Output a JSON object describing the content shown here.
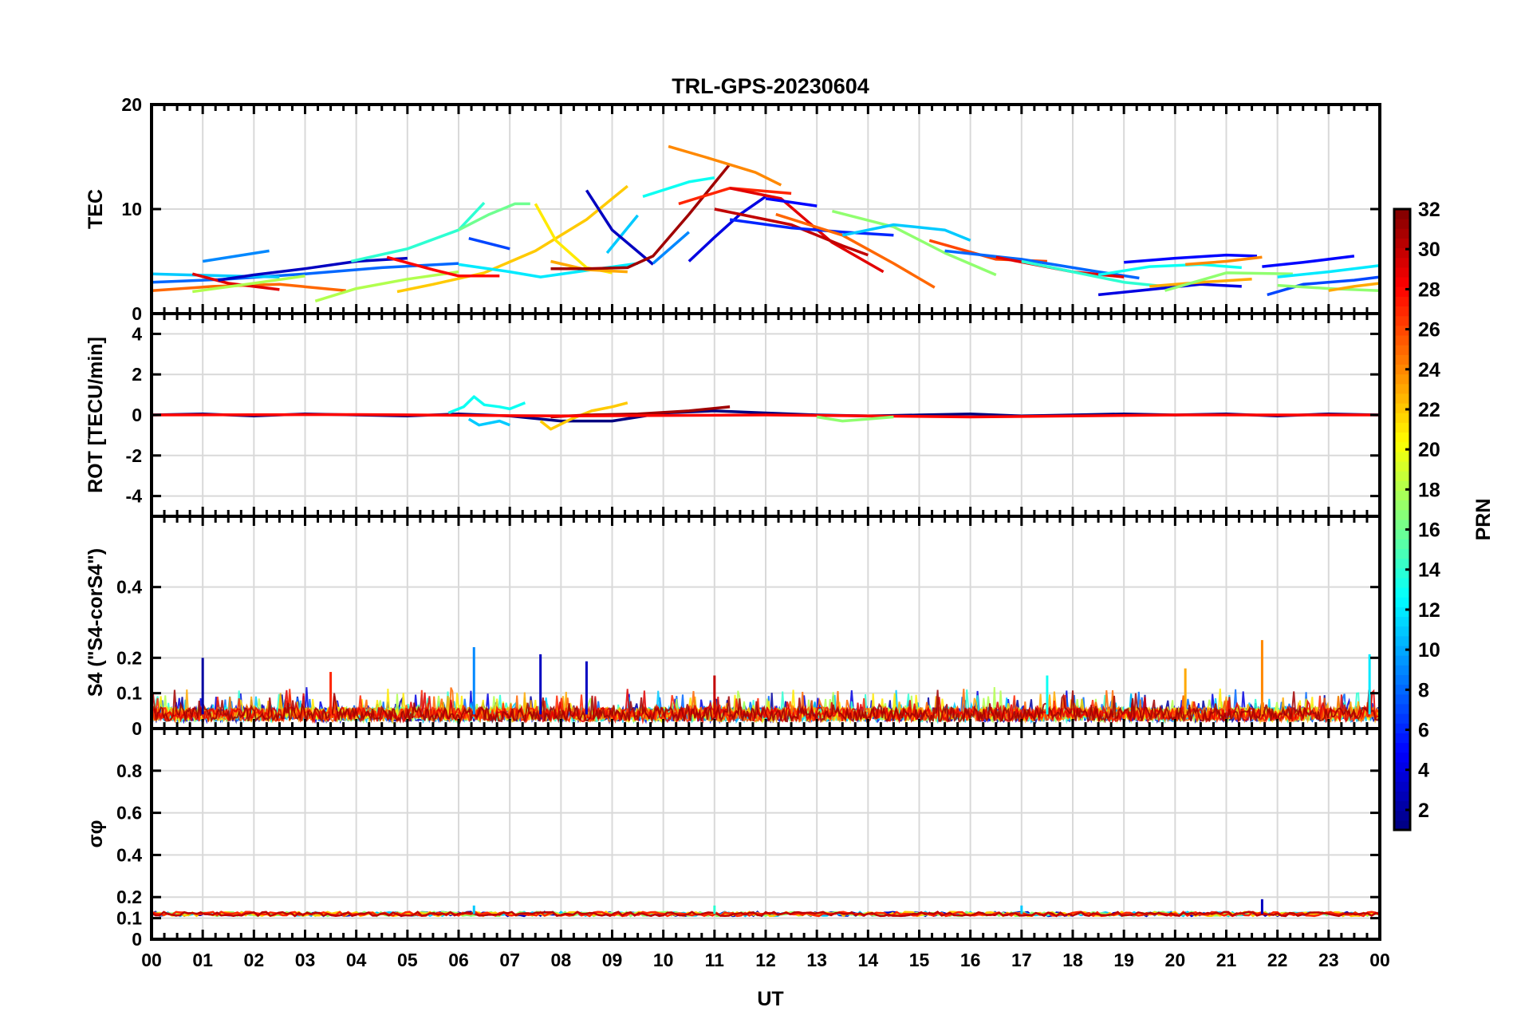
{
  "chart_data": {
    "type": "line",
    "title": "TRL-GPS-20230604",
    "xlabel": "UT",
    "x_unit": "hours UT",
    "xlim": [
      0,
      24
    ],
    "x_tick_values": [
      0,
      1,
      2,
      3,
      4,
      5,
      6,
      7,
      8,
      9,
      10,
      11,
      12,
      13,
      14,
      15,
      16,
      17,
      18,
      19,
      20,
      21,
      22,
      23,
      24
    ],
    "x_tick_labels": [
      "00",
      "01",
      "02",
      "03",
      "04",
      "05",
      "06",
      "07",
      "08",
      "09",
      "10",
      "11",
      "12",
      "13",
      "14",
      "15",
      "16",
      "17",
      "18",
      "19",
      "20",
      "21",
      "22",
      "23",
      "00"
    ],
    "grid": true,
    "colorbar": {
      "label": "PRN",
      "range": [
        1,
        32
      ],
      "colormap": "jet",
      "tick_values": [
        2,
        4,
        6,
        8,
        10,
        12,
        14,
        16,
        18,
        20,
        22,
        24,
        26,
        28,
        30,
        32
      ],
      "tick_labels": [
        "2",
        "4",
        "6",
        "8",
        "10",
        "12",
        "14",
        "16",
        "18",
        "20",
        "22",
        "24",
        "26",
        "28",
        "30",
        "32"
      ],
      "placement": "right"
    },
    "panels": [
      {
        "ylabel": "TEC",
        "ylim": [
          0,
          20
        ],
        "y_tick_values": [
          0,
          10,
          20
        ],
        "y_tick_labels": [
          "0",
          "10",
          "20"
        ],
        "series": [
          {
            "prn": 8,
            "x": [
              0.0,
              1.5,
              3.0,
              4.5,
              6.0
            ],
            "y": [
              3.0,
              3.3,
              3.8,
              4.4,
              4.8
            ]
          },
          {
            "prn": 9,
            "x": [
              1.0,
              2.3
            ],
            "y": [
              5.0,
              6.0
            ]
          },
          {
            "prn": 11,
            "x": [
              0.0,
              1.5,
              2.5
            ],
            "y": [
              3.8,
              3.6,
              3.5
            ]
          },
          {
            "prn": 25,
            "x": [
              0.0,
              1.2,
              2.5,
              3.8
            ],
            "y": [
              2.2,
              2.6,
              2.8,
              2.2
            ]
          },
          {
            "prn": 29,
            "x": [
              0.8,
              1.5,
              2.5
            ],
            "y": [
              3.8,
              2.9,
              2.3
            ]
          },
          {
            "prn": 18,
            "x": [
              0.8,
              2.0,
              3.0
            ],
            "y": [
              2.1,
              2.9,
              3.6
            ]
          },
          {
            "prn": 3,
            "x": [
              1.3,
              2.0,
              3.0,
              4.0,
              5.0
            ],
            "y": [
              3.2,
              3.7,
              4.3,
              5.0,
              5.3
            ]
          },
          {
            "prn": 18,
            "x": [
              3.2,
              4.0,
              5.0,
              6.0
            ],
            "y": [
              1.2,
              2.4,
              3.3,
              4.0
            ]
          },
          {
            "prn": 22,
            "x": [
              4.8,
              5.5,
              6.5,
              7.5,
              8.5,
              9.3
            ],
            "y": [
              2.1,
              2.8,
              3.9,
              6.0,
              9.0,
              12.2
            ]
          },
          {
            "prn": 28,
            "x": [
              4.6,
              5.5,
              6.0,
              6.8
            ],
            "y": [
              5.4,
              4.2,
              3.6,
              3.6
            ]
          },
          {
            "prn": 14,
            "x": [
              3.9,
              5.0,
              6.0,
              6.5
            ],
            "y": [
              5.0,
              6.2,
              8.0,
              10.6
            ]
          },
          {
            "prn": 16,
            "x": [
              6.0,
              6.6,
              7.1,
              7.4
            ],
            "y": [
              8.0,
              9.5,
              10.5,
              10.5
            ]
          },
          {
            "prn": 12,
            "x": [
              6.0,
              7.0,
              7.6,
              8.6,
              9.5
            ],
            "y": [
              4.7,
              4.0,
              3.5,
              4.2,
              4.8
            ]
          },
          {
            "prn": 7,
            "x": [
              6.2,
              7.0
            ],
            "y": [
              7.2,
              6.2
            ]
          },
          {
            "prn": 21,
            "x": [
              7.5,
              7.9,
              8.5,
              9.0
            ],
            "y": [
              10.5,
              7.0,
              4.4,
              3.9
            ]
          },
          {
            "prn": 11,
            "x": [
              8.9,
              9.5
            ],
            "y": [
              5.8,
              9.4
            ]
          },
          {
            "prn": 23,
            "x": [
              7.8,
              8.5,
              9.3
            ],
            "y": [
              5.0,
              4.2,
              4.0
            ]
          },
          {
            "prn": 3,
            "x": [
              8.5,
              9.0,
              9.8
            ],
            "y": [
              11.8,
              8.0,
              4.7
            ]
          },
          {
            "prn": 31,
            "x": [
              7.8,
              8.5,
              9.3,
              9.8,
              10.5,
              11.3
            ],
            "y": [
              4.3,
              4.3,
              4.4,
              5.5,
              9.5,
              14.3
            ]
          },
          {
            "prn": 13,
            "x": [
              9.6,
              10.5,
              11.0
            ],
            "y": [
              11.2,
              12.6,
              13.0
            ]
          },
          {
            "prn": 9,
            "x": [
              9.8,
              10.5
            ],
            "y": [
              4.8,
              7.8
            ]
          },
          {
            "prn": 4,
            "x": [
              10.5,
              11.0,
              11.5,
              12.0
            ],
            "y": [
              5.0,
              7.3,
              9.5,
              11.2
            ]
          },
          {
            "prn": 24,
            "x": [
              10.1,
              10.8,
              11.8,
              12.3
            ],
            "y": [
              16.0,
              15.0,
              13.5,
              12.3
            ]
          },
          {
            "prn": 27,
            "x": [
              10.3,
              11.3,
              12.5
            ],
            "y": [
              10.5,
              12.0,
              11.5
            ]
          },
          {
            "prn": 29,
            "x": [
              11.3,
              12.3,
              13.3,
              14.3
            ],
            "y": [
              12.0,
              11.0,
              6.8,
              4.0
            ]
          },
          {
            "prn": 30,
            "x": [
              11.0,
              12.5,
              13.5,
              14.0
            ],
            "y": [
              10.0,
              8.5,
              6.5,
              5.6
            ]
          },
          {
            "prn": 5,
            "x": [
              12.0,
              13.0
            ],
            "y": [
              11.0,
              10.3
            ]
          },
          {
            "prn": 6,
            "x": [
              11.3,
              12.5,
              13.5,
              14.5
            ],
            "y": [
              9.0,
              8.2,
              7.8,
              7.5
            ]
          },
          {
            "prn": 25,
            "x": [
              12.2,
              13.5,
              14.5,
              15.3
            ],
            "y": [
              9.5,
              7.5,
              4.8,
              2.5
            ]
          },
          {
            "prn": 17,
            "x": [
              13.3,
              14.5,
              15.5,
              16.5
            ],
            "y": [
              9.8,
              8.3,
              5.8,
              3.7
            ]
          },
          {
            "prn": 11,
            "x": [
              13.5,
              14.5,
              15.5,
              16.0
            ],
            "y": [
              7.5,
              8.5,
              8.0,
              7.0
            ]
          },
          {
            "prn": 26,
            "x": [
              15.2,
              16.5,
              17.5
            ],
            "y": [
              7.0,
              5.2,
              5.0
            ]
          },
          {
            "prn": 8,
            "x": [
              15.5,
              17.0,
              18.5,
              19.3
            ],
            "y": [
              6.0,
              5.2,
              4.0,
              3.4
            ]
          },
          {
            "prn": 29,
            "x": [
              16.5,
              18.0,
              19.0
            ],
            "y": [
              5.4,
              4.0,
              3.5
            ]
          },
          {
            "prn": 14,
            "x": [
              17.0,
              18.0,
              19.0,
              20.0
            ],
            "y": [
              5.0,
              4.0,
              3.0,
              2.5
            ]
          },
          {
            "prn": 4,
            "x": [
              18.5,
              19.5,
              20.5,
              21.3
            ],
            "y": [
              1.8,
              2.3,
              2.8,
              2.6
            ]
          },
          {
            "prn": 13,
            "x": [
              18.5,
              19.5,
              20.5,
              21.3
            ],
            "y": [
              3.7,
              4.5,
              4.7,
              4.4
            ]
          },
          {
            "prn": 5,
            "x": [
              19.0,
              20.0,
              21.0,
              21.6
            ],
            "y": [
              4.9,
              5.3,
              5.6,
              5.5
            ]
          },
          {
            "prn": 23,
            "x": [
              19.5,
              20.5,
              21.5
            ],
            "y": [
              2.6,
              3.0,
              3.3
            ]
          },
          {
            "prn": 24,
            "x": [
              20.2,
              21.0,
              21.7
            ],
            "y": [
              4.7,
              5.0,
              5.4
            ]
          },
          {
            "prn": 17,
            "x": [
              19.8,
              21.0,
              22.3
            ],
            "y": [
              2.2,
              3.9,
              3.8
            ]
          },
          {
            "prn": 5,
            "x": [
              21.7,
              22.5,
              23.5
            ],
            "y": [
              4.5,
              4.9,
              5.5
            ]
          },
          {
            "prn": 7,
            "x": [
              21.8,
              22.5,
              23.5,
              24.0
            ],
            "y": [
              1.8,
              2.8,
              3.2,
              3.5
            ]
          },
          {
            "prn": 12,
            "x": [
              22.0,
              23.0,
              24.0
            ],
            "y": [
              3.5,
              4.0,
              4.6
            ]
          },
          {
            "prn": 17,
            "x": [
              22.0,
              23.0,
              24.0
            ],
            "y": [
              2.7,
              2.4,
              2.2
            ]
          },
          {
            "prn": 23,
            "x": [
              23.0,
              23.5,
              24.0
            ],
            "y": [
              2.2,
              2.6,
              2.9
            ]
          }
        ]
      },
      {
        "ylabel": "ROT [TECU/min]",
        "ylim": [
          -5,
          5
        ],
        "y_tick_values": [
          -4,
          -2,
          0,
          2,
          4
        ],
        "y_tick_labels": [
          "-4",
          "-2",
          "0",
          "2",
          "4"
        ],
        "series": [
          {
            "prn": 1,
            "x": [
              0.0,
              1.0,
              2.0,
              3.0,
              4.0,
              5.0,
              6.0,
              7.0,
              8.0,
              9.0,
              10.0,
              11.0,
              12.0,
              13.0,
              14.0,
              15.0,
              16.0,
              17.0,
              18.0,
              19.0,
              20.0,
              21.0,
              22.0,
              23.0,
              24.0
            ],
            "y": [
              0.0,
              0.05,
              -0.05,
              0.05,
              0.0,
              -0.05,
              0.05,
              -0.05,
              -0.3,
              -0.3,
              0.1,
              0.2,
              0.1,
              0.0,
              -0.05,
              0.0,
              0.05,
              -0.05,
              0.0,
              0.05,
              0.0,
              0.05,
              -0.05,
              0.05,
              0.0
            ]
          },
          {
            "prn": 13,
            "x": [
              5.8,
              6.1,
              6.3,
              6.5,
              6.8,
              7.0,
              7.3
            ],
            "y": [
              0.1,
              0.4,
              0.9,
              0.5,
              0.4,
              0.3,
              0.6
            ]
          },
          {
            "prn": 11,
            "x": [
              6.2,
              6.4,
              6.8,
              7.0
            ],
            "y": [
              -0.2,
              -0.5,
              -0.3,
              -0.5
            ]
          },
          {
            "prn": 22,
            "x": [
              7.6,
              7.8,
              8.2,
              8.6,
              9.0,
              9.3
            ],
            "y": [
              -0.3,
              -0.7,
              -0.2,
              0.2,
              0.4,
              0.6
            ]
          },
          {
            "prn": 31,
            "x": [
              7.8,
              8.5,
              9.5,
              10.5,
              11.3
            ],
            "y": [
              -0.1,
              0.0,
              0.05,
              0.2,
              0.4
            ]
          },
          {
            "prn": 28,
            "x": [
              0.0,
              4.0,
              8.0,
              12.0,
              16.0,
              20.0,
              24.0
            ],
            "y": [
              0.0,
              0.02,
              -0.05,
              0.0,
              -0.1,
              0.0,
              0.0
            ]
          },
          {
            "prn": 17,
            "x": [
              13.0,
              13.5,
              14.0,
              14.5
            ],
            "y": [
              -0.1,
              -0.3,
              -0.2,
              -0.1
            ]
          }
        ]
      },
      {
        "ylabel": "S4 (\"S4-corS4\")",
        "ylim": [
          0,
          0.6
        ],
        "y_tick_values": [
          0,
          0.1,
          0.2,
          0.4
        ],
        "y_tick_labels": [
          "0",
          "0.1",
          "0.2",
          "0.4"
        ],
        "band_levels": [
          0.02,
          0.06
        ],
        "peaks": [
          {
            "x": 1.0,
            "y": 0.2,
            "prn": 2
          },
          {
            "x": 6.3,
            "y": 0.23,
            "prn": 9
          },
          {
            "x": 7.6,
            "y": 0.21,
            "prn": 3
          },
          {
            "x": 8.5,
            "y": 0.19,
            "prn": 3
          },
          {
            "x": 21.7,
            "y": 0.25,
            "prn": 24
          },
          {
            "x": 23.8,
            "y": 0.21,
            "prn": 12
          },
          {
            "x": 3.5,
            "y": 0.16,
            "prn": 27
          },
          {
            "x": 11.0,
            "y": 0.15,
            "prn": 30
          },
          {
            "x": 17.5,
            "y": 0.15,
            "prn": 13
          },
          {
            "x": 20.2,
            "y": 0.17,
            "prn": 23
          }
        ]
      },
      {
        "ylabel": "σφ",
        "ylim": [
          0,
          1
        ],
        "y_tick_values": [
          0,
          0.1,
          0.2,
          0.4,
          0.6,
          0.8
        ],
        "y_tick_labels": [
          "0",
          "0.1",
          "0.2",
          "0.4",
          "0.6",
          "0.8"
        ],
        "baseline": 0.12,
        "peaks": [
          {
            "x": 21.7,
            "y": 0.19,
            "prn": 3
          },
          {
            "x": 6.3,
            "y": 0.16,
            "prn": 11
          },
          {
            "x": 11.0,
            "y": 0.16,
            "prn": 14
          },
          {
            "x": 17.0,
            "y": 0.16,
            "prn": 11
          }
        ]
      }
    ]
  }
}
